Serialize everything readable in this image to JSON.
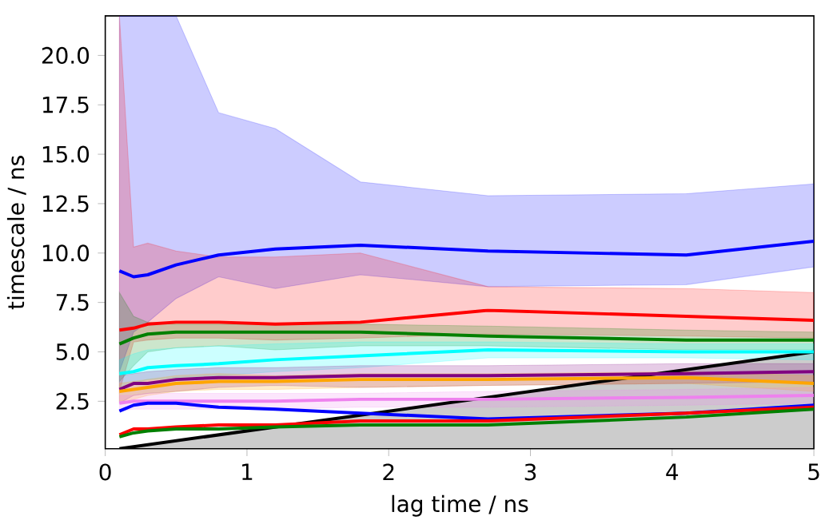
{
  "chart_data": {
    "type": "line",
    "xlabel": "lag time / ns",
    "ylabel": "timescale / ns",
    "x": [
      0.1,
      0.2,
      0.3,
      0.5,
      0.8,
      1.2,
      1.8,
      2.7,
      4.1,
      5.0
    ],
    "xlim": [
      0,
      5
    ],
    "ylim": [
      0.1,
      22
    ],
    "xticks": [
      0,
      1,
      2,
      3,
      4,
      5
    ],
    "yticks": [
      {
        "value": 2.5,
        "label": "2.5"
      },
      {
        "value": 5,
        "label": "5.0"
      },
      {
        "value": 7.5,
        "label": "7.5"
      },
      {
        "value": 10,
        "label": "10.0"
      },
      {
        "value": 12.5,
        "label": "12.5"
      },
      {
        "value": 15,
        "label": "15.0"
      },
      {
        "value": 17.5,
        "label": "17.5"
      },
      {
        "value": 20,
        "label": "20.0"
      }
    ],
    "line_style": "solid",
    "series": [
      {
        "color": "#000000",
        "x": [
          0.1,
          5.0
        ],
        "values": [
          0.1,
          5.0
        ],
        "upper": [
          0.1,
          5.0
        ],
        "lower": [
          0.1,
          0.1
        ]
      },
      {
        "color": "#0000ff",
        "values": [
          9.1,
          8.8,
          8.9,
          9.4,
          9.9,
          10.2,
          10.4,
          10.1,
          9.9,
          10.6
        ],
        "upper": [
          22,
          22,
          22,
          22,
          17.1,
          16.3,
          13.6,
          12.9,
          13.0,
          13.5
        ],
        "lower": [
          4.0,
          6.0,
          6.5,
          7.7,
          8.8,
          8.2,
          8.9,
          8.3,
          8.4,
          9.3
        ]
      },
      {
        "color": "#ff0000",
        "values": [
          6.1,
          6.2,
          6.4,
          6.5,
          6.5,
          6.4,
          6.5,
          7.1,
          6.8,
          6.6
        ],
        "upper": [
          22,
          10.3,
          10.5,
          10.1,
          9.8,
          9.8,
          10.0,
          8.3,
          8.2,
          8.0
        ],
        "lower": [
          3.0,
          5.5,
          5.6,
          5.7,
          5.7,
          5.6,
          5.7,
          5.9,
          5.8,
          5.7
        ]
      },
      {
        "color": "#008000",
        "values": [
          5.4,
          5.7,
          5.9,
          6.0,
          6.0,
          6.0,
          6.0,
          5.8,
          5.6,
          5.6
        ],
        "upper": [
          8.0,
          6.8,
          6.5,
          6.4,
          6.4,
          6.4,
          6.4,
          6.3,
          6.1,
          6.0
        ],
        "lower": [
          3.5,
          4.3,
          5.0,
          5.2,
          5.3,
          5.1,
          5.3,
          5.3,
          5.1,
          5.1
        ]
      },
      {
        "color": "#00ffff",
        "values": [
          3.9,
          4.0,
          4.2,
          4.3,
          4.4,
          4.6,
          4.8,
          5.1,
          5.0,
          5.0
        ],
        "upper": [
          4.6,
          4.9,
          5.1,
          5.2,
          5.3,
          5.4,
          5.5,
          5.5,
          5.4,
          5.4
        ],
        "lower": [
          3.2,
          3.4,
          3.6,
          3.7,
          3.8,
          4.0,
          4.2,
          4.7,
          4.7,
          4.6
        ]
      },
      {
        "color": "#800080",
        "values": [
          3.1,
          3.4,
          3.4,
          3.6,
          3.7,
          3.7,
          3.8,
          3.8,
          3.9,
          4.0
        ],
        "upper": [
          3.8,
          3.9,
          4.0,
          4.1,
          4.2,
          4.2,
          4.3,
          4.3,
          4.4,
          4.4
        ],
        "lower": [
          2.4,
          2.8,
          2.9,
          3.0,
          3.2,
          3.3,
          3.2,
          3.3,
          3.4,
          3.5
        ]
      },
      {
        "color": "#ffa500",
        "values": [
          3.0,
          3.1,
          3.2,
          3.4,
          3.5,
          3.5,
          3.6,
          3.6,
          3.7,
          3.4
        ],
        "upper": [
          3.4,
          3.5,
          3.6,
          3.8,
          3.9,
          3.8,
          3.9,
          3.9,
          4.0,
          3.8
        ],
        "lower": [
          2.5,
          2.6,
          2.8,
          3.0,
          3.1,
          3.1,
          3.2,
          3.3,
          3.4,
          3.0
        ]
      },
      {
        "color": "#ee82ee",
        "values": [
          2.4,
          2.5,
          2.5,
          2.5,
          2.5,
          2.5,
          2.6,
          2.6,
          2.7,
          2.8
        ],
        "upper": [
          2.8,
          2.8,
          2.9,
          2.9,
          2.9,
          2.9,
          2.9,
          3.0,
          3.1,
          3.2
        ],
        "lower": [
          2.0,
          2.1,
          2.1,
          2.1,
          2.1,
          2.1,
          2.2,
          2.2,
          2.3,
          2.4
        ]
      },
      {
        "color": "#0000ff",
        "values": [
          2.0,
          2.3,
          2.4,
          2.4,
          2.2,
          2.1,
          1.9,
          1.6,
          1.9,
          2.3
        ]
      },
      {
        "color": "#ff0000",
        "values": [
          0.8,
          1.1,
          1.1,
          1.2,
          1.3,
          1.3,
          1.5,
          1.5,
          1.9,
          2.2
        ]
      },
      {
        "color": "#008000",
        "values": [
          0.7,
          0.9,
          1.0,
          1.1,
          1.1,
          1.2,
          1.3,
          1.3,
          1.7,
          2.1
        ]
      }
    ]
  }
}
